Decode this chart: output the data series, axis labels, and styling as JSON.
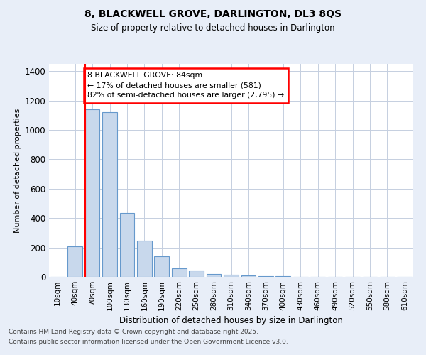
{
  "title1": "8, BLACKWELL GROVE, DARLINGTON, DL3 8QS",
  "title2": "Size of property relative to detached houses in Darlington",
  "xlabel": "Distribution of detached houses by size in Darlington",
  "ylabel": "Number of detached properties",
  "categories": [
    "10sqm",
    "40sqm",
    "70sqm",
    "100sqm",
    "130sqm",
    "160sqm",
    "190sqm",
    "220sqm",
    "250sqm",
    "280sqm",
    "310sqm",
    "340sqm",
    "370sqm",
    "400sqm",
    "430sqm",
    "460sqm",
    "490sqm",
    "520sqm",
    "550sqm",
    "580sqm",
    "610sqm"
  ],
  "values": [
    0,
    210,
    1140,
    1120,
    435,
    245,
    140,
    60,
    45,
    20,
    15,
    10,
    5,
    3,
    2,
    1,
    0,
    0,
    0,
    0,
    0
  ],
  "bar_color": "#c8d8ec",
  "bar_edge_color": "#6699cc",
  "red_line_index": 2,
  "annotation_text": "8 BLACKWELL GROVE: 84sqm\n← 17% of detached houses are smaller (581)\n82% of semi-detached houses are larger (2,795) →",
  "annotation_box_color": "white",
  "annotation_border_color": "red",
  "footer1": "Contains HM Land Registry data © Crown copyright and database right 2025.",
  "footer2": "Contains public sector information licensed under the Open Government Licence v3.0.",
  "ylim": [
    0,
    1450
  ],
  "yticks": [
    0,
    200,
    400,
    600,
    800,
    1000,
    1200,
    1400
  ],
  "background_color": "#e8eef8",
  "plot_background": "#ffffff",
  "grid_color": "#c5cfe0"
}
